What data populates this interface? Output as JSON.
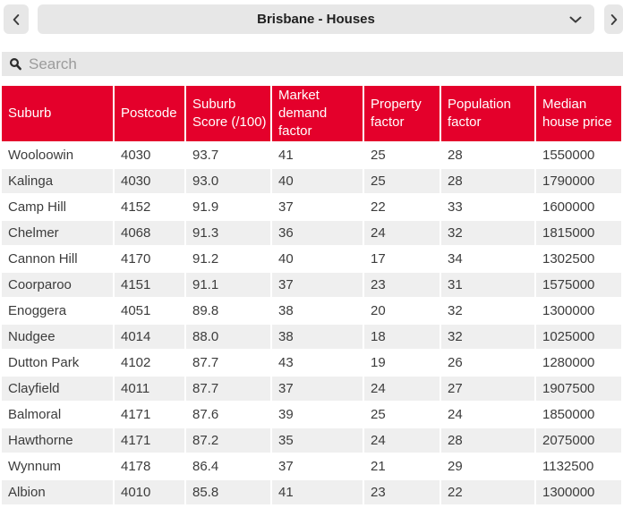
{
  "colors": {
    "header_bg": "#e4002b",
    "stripe_bg": "#efefef",
    "control_bg": "#e7e7e7"
  },
  "header": {
    "title": "Brisbane - Houses",
    "prev_icon": "chevron-left",
    "next_icon": "chevron-right",
    "dropdown_icon": "chevron-down"
  },
  "search": {
    "placeholder": "Search",
    "value": "",
    "icon": "magnifier"
  },
  "table": {
    "columns": [
      "Suburb",
      "Postcode",
      "Suburb Score (/100)",
      "Market demand factor",
      "Property factor",
      "Population factor",
      "Median house price"
    ],
    "rows": [
      [
        "Wooloowin",
        "4030",
        "93.7",
        "41",
        "25",
        "28",
        "1550000"
      ],
      [
        "Kalinga",
        "4030",
        "93.0",
        "40",
        "25",
        "28",
        "1790000"
      ],
      [
        "Camp Hill",
        "4152",
        "91.9",
        "37",
        "22",
        "33",
        "1600000"
      ],
      [
        "Chelmer",
        "4068",
        "91.3",
        "36",
        "24",
        "32",
        "1815000"
      ],
      [
        "Cannon Hill",
        "4170",
        "91.2",
        "40",
        "17",
        "34",
        "1302500"
      ],
      [
        "Coorparoo",
        "4151",
        "91.1",
        "37",
        "23",
        "31",
        "1575000"
      ],
      [
        "Enoggera",
        "4051",
        "89.8",
        "38",
        "20",
        "32",
        "1300000"
      ],
      [
        "Nudgee",
        "4014",
        "88.0",
        "38",
        "18",
        "32",
        "1025000"
      ],
      [
        "Dutton Park",
        "4102",
        "87.7",
        "43",
        "19",
        "26",
        "1280000"
      ],
      [
        "Clayfield",
        "4011",
        "87.7",
        "37",
        "24",
        "27",
        "1907500"
      ],
      [
        "Balmoral",
        "4171",
        "87.6",
        "39",
        "25",
        "24",
        "1850000"
      ],
      [
        "Hawthorne",
        "4171",
        "87.2",
        "35",
        "24",
        "28",
        "2075000"
      ],
      [
        "Wynnum",
        "4178",
        "86.4",
        "37",
        "21",
        "29",
        "1132500"
      ],
      [
        "Albion",
        "4010",
        "85.8",
        "41",
        "23",
        "22",
        "1300000"
      ]
    ]
  }
}
